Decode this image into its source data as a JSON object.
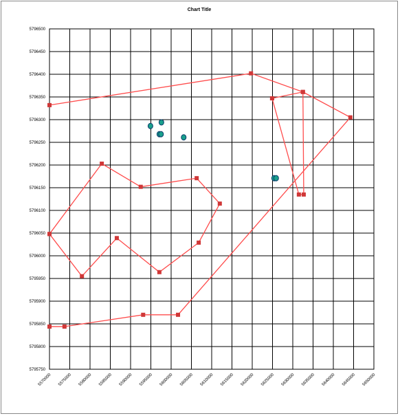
{
  "chart_data": {
    "type": "scatter",
    "title": "Chart Title",
    "xlim": [
      5570000,
      5650000
    ],
    "xticks": [
      5570000,
      5575000,
      5580000,
      5585000,
      5590000,
      5595000,
      5600000,
      5605000,
      5610000,
      5615000,
      5620000,
      5625000,
      5630000,
      5635000,
      5640000,
      5645000,
      5650000
    ],
    "ylim": [
      5795750,
      5796500
    ],
    "yticks": [
      5795750,
      5795800,
      5795850,
      5795900,
      5795950,
      5796000,
      5796050,
      5796100,
      5796150,
      5796200,
      5796250,
      5796300,
      5796350,
      5796400,
      5796450,
      5796500
    ],
    "grid": true,
    "series": [
      {
        "color": "#ff4c4c",
        "line": true,
        "marker": "square",
        "x": [
          5570000,
          5619700,
          5632500,
          5644200,
          5601700,
          5593100,
          5573700,
          5570000,
          null,
          5624900,
          5632500,
          5632700,
          5631500,
          5624900,
          null,
          5570000,
          5582900,
          5592500,
          5606300,
          5612000,
          5606800,
          5597100,
          5586600,
          5578000,
          5570000
        ],
        "values": [
          5796332,
          5796402,
          5796361,
          5796305,
          5795870,
          5795870,
          5795844,
          5795844,
          null,
          5796347,
          5796361,
          5796135,
          5796135,
          5796347,
          null,
          5796048,
          5796203,
          5796152,
          5796171,
          5796115,
          5796029,
          5795964,
          5796039,
          5795955,
          5796048
        ]
      },
      {
        "color": "#1aa08c",
        "line": false,
        "marker": "circle",
        "x": [
          5594900,
          5597600,
          5597100,
          5597500,
          5603100,
          5625400,
          5625900
        ],
        "values": [
          5796286,
          5796294,
          5796268,
          5796268,
          5796261,
          5796171,
          5796171
        ]
      }
    ]
  }
}
